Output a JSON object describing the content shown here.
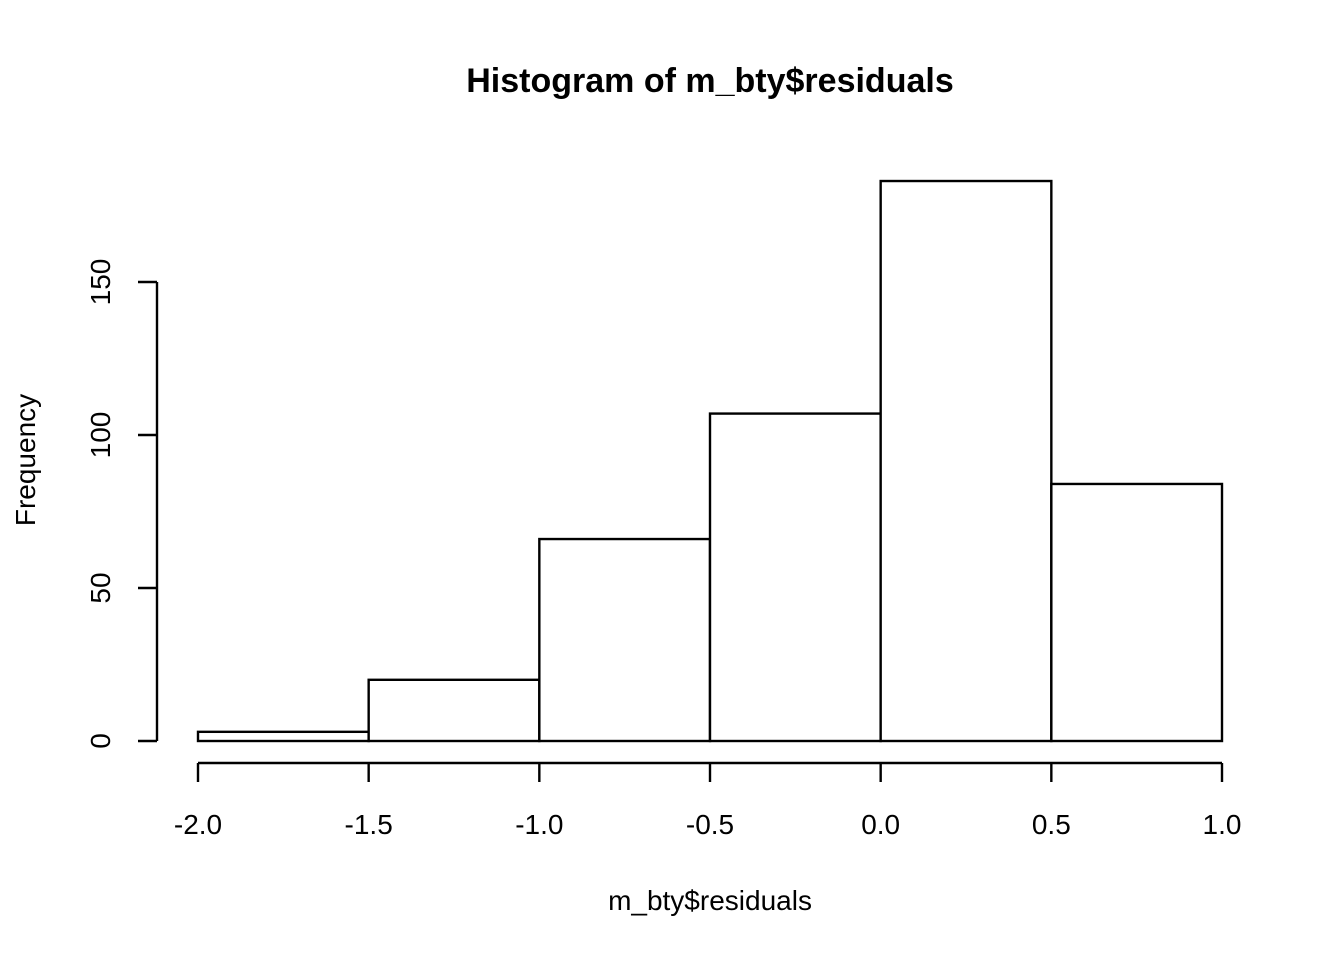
{
  "chart_data": {
    "type": "bar",
    "subtype": "histogram",
    "title": "Histogram of m_bty$residuals",
    "xlabel": "m_bty$residuals",
    "ylabel": "Frequency",
    "bin_edges": [
      -2.0,
      -1.5,
      -1.0,
      -0.5,
      0.0,
      0.5,
      1.0
    ],
    "categories": [
      "-2.0 to -1.5",
      "-1.5 to -1.0",
      "-1.0 to -0.5",
      "-0.5 to 0.0",
      "0.0 to 0.5",
      "0.5 to 1.0"
    ],
    "values": [
      3,
      20,
      66,
      107,
      183,
      84
    ],
    "xlim": [
      -2.0,
      1.0
    ],
    "ylim": [
      0,
      183
    ],
    "x_ticks": [
      -2.0,
      -1.5,
      -1.0,
      -0.5,
      0.0,
      0.5,
      1.0
    ],
    "x_tick_labels": [
      "-2.0",
      "-1.5",
      "-1.0",
      "-0.5",
      "0.0",
      "0.5",
      "1.0"
    ],
    "y_ticks": [
      0,
      50,
      100,
      150
    ],
    "y_tick_labels": [
      "0",
      "50",
      "100",
      "150"
    ],
    "grid": false,
    "legend": "none",
    "bar_fill": "#ffffff",
    "bar_stroke": "#000000"
  }
}
